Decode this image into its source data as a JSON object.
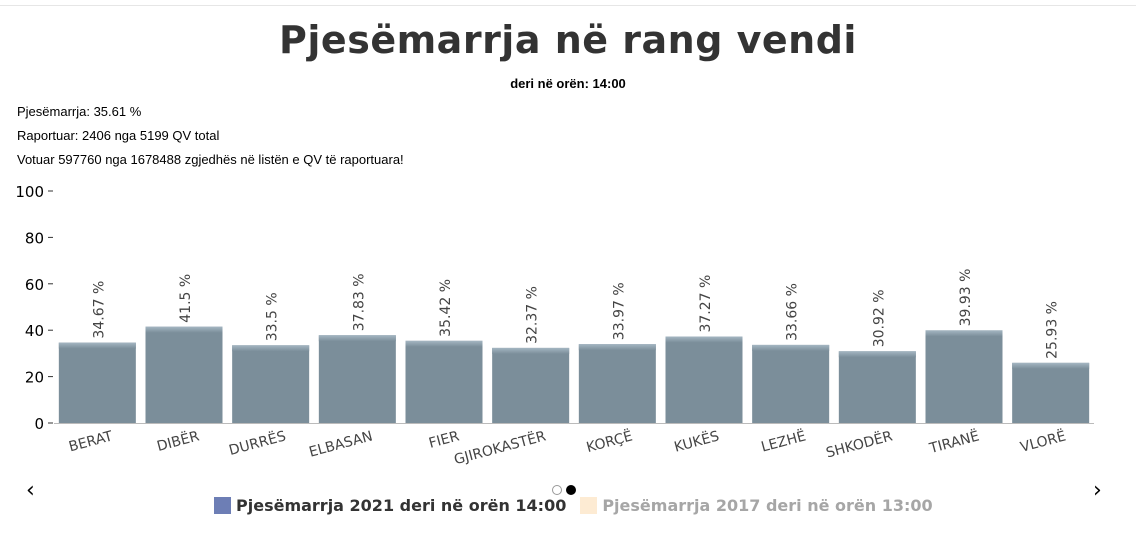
{
  "header": {
    "title": "Pjesëmarrja në rang vendi",
    "subtitle": "deri në orën: 14:00"
  },
  "stats": {
    "line1": "Pjesëmarrja: 35.61 %",
    "line2": "Raportuar: 2406 nga 5199 QV total",
    "line3": "Votuar 597760 nga 1678488 zgjedhës në listën e QV të raportuara!"
  },
  "navigation": {
    "prev": "‹",
    "next": "›"
  },
  "legend": [
    {
      "label": "Pjesëmarrja 2021 deri në orën 14:00",
      "color": "#6d7eb5",
      "text_color": "#333333"
    },
    {
      "label": "Pjesëmarrja 2017 deri në orën 13:00",
      "color": "#fdebd3",
      "text_color": "#a6a6a6"
    }
  ],
  "chart_data": {
    "type": "bar",
    "categories": [
      "BERAT",
      "DIBËR",
      "DURRËS",
      "ELBASAN",
      "FIER",
      "GJIROKASTËR",
      "KORÇË",
      "KUKËS",
      "LEZHË",
      "SHKODËR",
      "TIRANË",
      "VLORË"
    ],
    "values": [
      34.67,
      41.5,
      33.5,
      37.83,
      35.42,
      32.37,
      33.97,
      37.27,
      33.66,
      30.92,
      39.93,
      25.93
    ],
    "data_labels": [
      "34.67 %",
      "41.5 %",
      "33.5 %",
      "37.83 %",
      "35.42 %",
      "32.37 %",
      "33.97 %",
      "37.27 %",
      "33.66 %",
      "30.92 %",
      "39.93 %",
      "25.93 %"
    ],
    "yticks": [
      0,
      20,
      40,
      60,
      80,
      100
    ],
    "ylim": [
      0,
      100
    ],
    "bar_color": "#7b8e9a",
    "bar_top_color": "#a4b6c2",
    "grid": false,
    "legend_position": "bottom"
  }
}
